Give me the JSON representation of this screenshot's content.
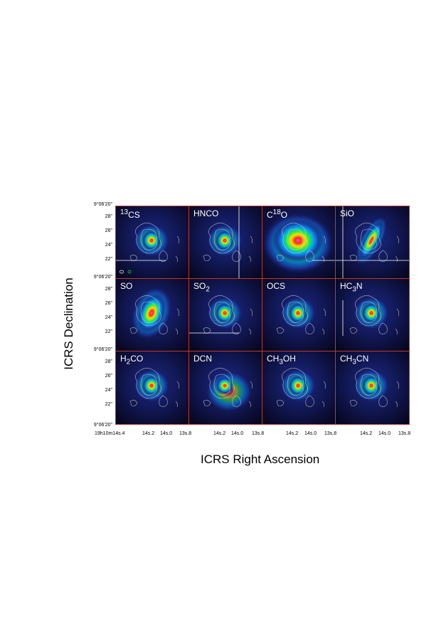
{
  "panels": [
    {
      "id": "13cs",
      "label": "13CS",
      "label_html": "<sup>13</sup>CS",
      "emission": "compact",
      "beams": true,
      "cross": "h-low"
    },
    {
      "id": "hnco",
      "label": "HNCO",
      "label_html": "HNCO",
      "emission": "compact",
      "cross": "v-right"
    },
    {
      "id": "c18o",
      "label": "C18O",
      "label_html": "C<sup>18</sup>O",
      "emission": "broad",
      "cross": "h-low-right"
    },
    {
      "id": "sio",
      "label": "SiO",
      "label_html": "SiO",
      "emission": "elongated",
      "cross": "cross"
    },
    {
      "id": "so",
      "label": "SO",
      "label_html": "SO",
      "emission": "large",
      "cross": ""
    },
    {
      "id": "so2",
      "label": "SO2",
      "label_html": "SO<sub>2</sub>",
      "emission": "compact",
      "cross": "h-low"
    },
    {
      "id": "ocs",
      "label": "OCS",
      "label_html": "OCS",
      "emission": "compact",
      "cross": ""
    },
    {
      "id": "hc3n",
      "label": "HC3N",
      "label_html": "HC<sub>3</sub>N",
      "emission": "compact",
      "cross": "v-left"
    },
    {
      "id": "h2co",
      "label": "H2CO",
      "label_html": "H<sub>2</sub>CO",
      "emission": "compact",
      "cross": ""
    },
    {
      "id": "dcn",
      "label": "DCN",
      "label_html": "DCN",
      "emission": "diffuse",
      "cross": ""
    },
    {
      "id": "ch3oh",
      "label": "CH3OH",
      "label_html": "CH<sub>3</sub>OH",
      "emission": "compact",
      "cross": ""
    },
    {
      "id": "ch3cn",
      "label": "CH3CN",
      "label_html": "CH<sub>3</sub>CN",
      "emission": "compact",
      "cross": ""
    }
  ],
  "y_ticks": [
    [
      "9°06'20\"",
      "28\"",
      "26\"",
      "24\"",
      "22\""
    ],
    [
      "9°06'20\"",
      "28\"",
      "26\"",
      "24\"",
      "22\""
    ],
    [
      "9°06'20\"",
      "28\"",
      "26\"",
      "24\"",
      "22\"",
      "9°06'20\""
    ]
  ],
  "x_ticks": [
    "19h10m14s.4",
    "14s.2",
    "14s.0",
    "13s.8",
    "14s.2",
    "14s.0",
    "13s.8",
    "14s.2",
    "14s.0",
    "13s.8",
    "14s.2",
    "14s.0",
    "13s.8"
  ],
  "y_title": "ICRS Declination",
  "x_title": "ICRS Right Ascension"
}
